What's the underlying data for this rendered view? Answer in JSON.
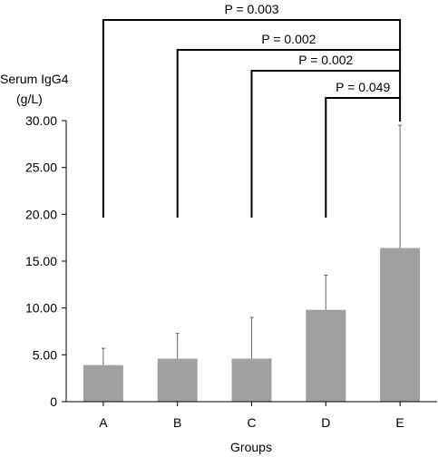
{
  "chart_data": {
    "type": "bar",
    "ylabel_line1": "Serum IgG4",
    "ylabel_line2": "(g/L)",
    "xlabel": "Groups",
    "categories": [
      "A",
      "B",
      "C",
      "D",
      "E"
    ],
    "values": [
      3.9,
      4.6,
      4.6,
      9.8,
      16.4
    ],
    "error_upper": [
      5.7,
      7.3,
      9.0,
      13.5,
      29.5
    ],
    "ylim": [
      0,
      30
    ],
    "yticks": [
      "0",
      "5.00",
      "10.00",
      "15.00",
      "20.00",
      "25.00",
      "30.00"
    ],
    "bar_color": "#a0a0a0",
    "grid": false,
    "comparisons": [
      {
        "from": "A",
        "to": "E",
        "label": "P = 0.003"
      },
      {
        "from": "B",
        "to": "E",
        "label": "P = 0.002"
      },
      {
        "from": "C",
        "to": "E",
        "label": "P = 0.002"
      },
      {
        "from": "D",
        "to": "E",
        "label": "P = 0.049"
      }
    ]
  }
}
